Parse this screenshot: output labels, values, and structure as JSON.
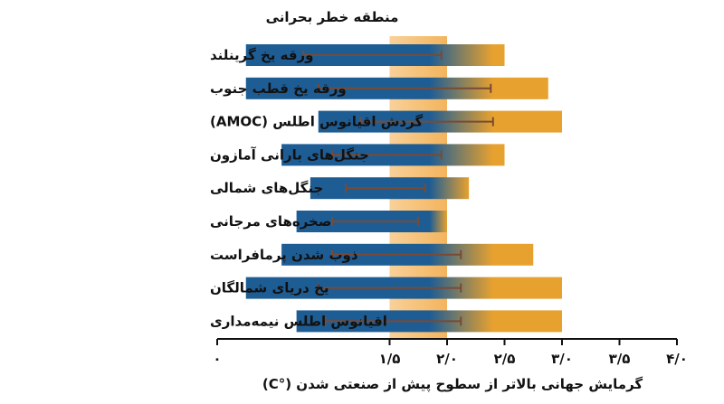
{
  "chart_data": {
    "type": "bar",
    "title": "",
    "xlabel": "گرمایش جهانی بالاتر از سطوح پیش از صنعتی شدن (°C)",
    "xlim": [
      0,
      4.0
    ],
    "ticks": [
      0,
      1.5,
      2.0,
      2.5,
      3.0,
      3.5,
      4.0
    ],
    "tick_labels": [
      "۰",
      "۱/۵",
      "۲/۰",
      "۲/۵",
      "۳/۰",
      "۳/۵",
      "۴/۰"
    ],
    "critical_zone": {
      "label": "منطقه خطر بحرانی",
      "range": [
        1.5,
        2.0
      ]
    },
    "colors": {
      "low": "#1e5d94",
      "high": "#e7a12f",
      "zone": "#f6c27a",
      "whisker": "#7a4a33"
    },
    "categories": [
      {
        "label": "ورقه یخ گرینلند",
        "bar": [
          0.25,
          2.5
        ],
        "whisker": [
          0.75,
          1.95
        ]
      },
      {
        "label": "ورقه یخ قطب جنوب",
        "bar": [
          0.25,
          2.88
        ],
        "whisker": [
          0.88,
          2.38
        ]
      },
      {
        "label": "گردش اقیانوس اطلس (AMOC)",
        "bar": [
          0.88,
          3.0
        ],
        "whisker": [
          1.25,
          2.4
        ]
      },
      {
        "label": "جنگل‌های بارانی آمازون",
        "bar": [
          0.56,
          2.5
        ],
        "whisker": [
          1.0,
          1.95
        ]
      },
      {
        "label": "جنگل‌های شمالی",
        "bar": [
          0.81,
          2.19
        ],
        "whisker": [
          1.12,
          1.81
        ]
      },
      {
        "label": "صخره‌های مرجانی",
        "bar": [
          0.69,
          2.0
        ],
        "whisker": [
          1.0,
          1.75
        ]
      },
      {
        "label": "ذوب شدن پرمافراست",
        "bar": [
          0.56,
          2.75
        ],
        "whisker": [
          1.0,
          2.12
        ]
      },
      {
        "label": "یخ دریای شمالگان",
        "bar": [
          0.25,
          3.0
        ],
        "whisker": [
          0.88,
          2.12
        ]
      },
      {
        "label": "اقیانوس اطلس نیمه‌مداری",
        "bar": [
          0.69,
          3.0
        ],
        "whisker": [
          0.94,
          2.12
        ]
      }
    ]
  }
}
